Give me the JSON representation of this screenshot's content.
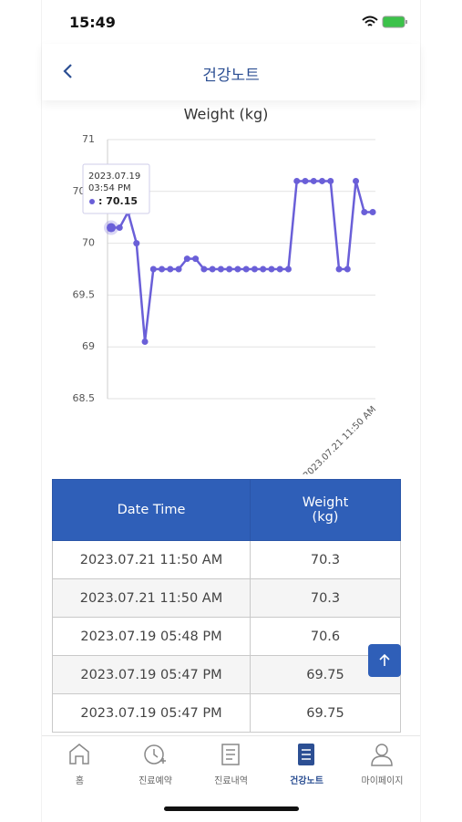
{
  "status_bar": {
    "time": "15:49"
  },
  "header": {
    "title": "건강노트"
  },
  "chart_data": {
    "type": "line",
    "title": "Weight (kg)",
    "categories": [
      null,
      null,
      null,
      null,
      null,
      null,
      null,
      null,
      null,
      null,
      null,
      null,
      null,
      null,
      null,
      null,
      null,
      null,
      null,
      null,
      null,
      null,
      null,
      null,
      null,
      null,
      null,
      null,
      null,
      null,
      null,
      "2023.07.21 11:50 AM"
    ],
    "series": [
      {
        "name": "Weight",
        "color": "#6a5fd8",
        "values": [
          70.15,
          70.15,
          70.3,
          70.0,
          69.05,
          69.75,
          69.75,
          69.75,
          69.75,
          69.85,
          69.85,
          69.75,
          69.75,
          69.75,
          69.75,
          69.75,
          69.75,
          69.75,
          69.75,
          69.75,
          69.75,
          69.75,
          70.6,
          70.6,
          70.6,
          70.6,
          70.6,
          69.75,
          69.75,
          70.6,
          70.3,
          70.3
        ]
      }
    ],
    "ylim": [
      68.5,
      71
    ],
    "yticks": [
      68.5,
      69,
      69.5,
      70,
      70.5,
      71
    ],
    "grid": true,
    "tooltip": {
      "date": "2023.07.19",
      "time": "03:54 PM",
      "value": 70.15,
      "value_label": ": 70.15"
    }
  },
  "table": {
    "header": [
      "Date Time",
      "Weight (kg)"
    ],
    "rows": [
      [
        "2023.07.21 11:50 AM",
        "70.3"
      ],
      [
        "2023.07.21 11:50 AM",
        "70.3"
      ],
      [
        "2023.07.19 05:48 PM",
        "70.6"
      ],
      [
        "2023.07.19 05:47 PM",
        "69.75"
      ],
      [
        "2023.07.19 05:47 PM",
        "69.75"
      ]
    ]
  },
  "tab_bar": {
    "items": [
      "홈",
      "진료예약",
      "진료내역",
      "건강노트",
      "마이페이지"
    ],
    "active": 3
  }
}
